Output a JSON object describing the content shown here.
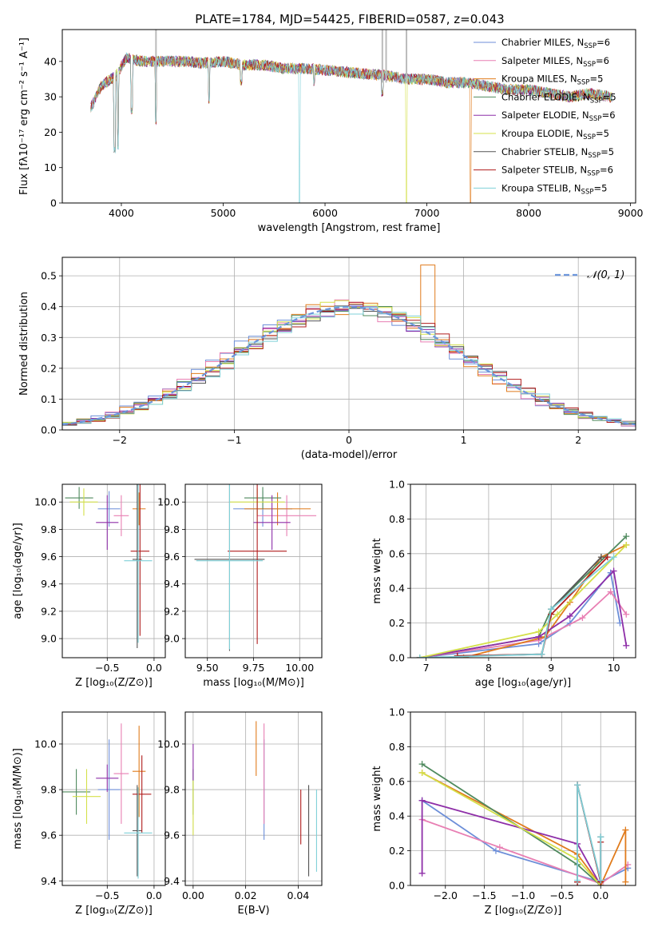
{
  "figure_title": "PLATE=1784, MJD=54425, FIBERID=0587, z=0.043",
  "legend": [
    {
      "name": "Chabrier MILES, N",
      "sub": "SSP",
      "tail": "=6",
      "color": "#6c8ed8"
    },
    {
      "name": "Salpeter MILES, N",
      "sub": "SSP",
      "tail": "=6",
      "color": "#e87fb3"
    },
    {
      "name": "Kroupa MILES, N",
      "sub": "SSP",
      "tail": "=5",
      "color": "#e07b1c"
    },
    {
      "name": "Chabrier ELODIE, N",
      "sub": "SSP",
      "tail": "=5",
      "color": "#4f8a5e"
    },
    {
      "name": "Salpeter ELODIE, N",
      "sub": "SSP",
      "tail": "=6",
      "color": "#8e2fa8"
    },
    {
      "name": "Kroupa ELODIE, N",
      "sub": "SSP",
      "tail": "=5",
      "color": "#d4e04a"
    },
    {
      "name": "Chabrier STELIB, N",
      "sub": "SSP",
      "tail": "=5",
      "color": "#555555"
    },
    {
      "name": "Salpeter STELIB, N",
      "sub": "SSP",
      "tail": "=6",
      "color": "#b01c1c"
    },
    {
      "name": "Kroupa STELIB, N",
      "sub": "SSP",
      "tail": "=5",
      "color": "#7fd0d8"
    }
  ],
  "chart_data": [
    {
      "id": "spectrum",
      "type": "line",
      "xlabel": "wavelength [Angstrom, rest frame]",
      "ylabel": "Flux [fλ10⁻¹⁷ erg cm⁻² s⁻¹ A⁻¹]",
      "xlim": [
        3420,
        9050
      ],
      "ylim": [
        0,
        49
      ],
      "xticks": [
        4000,
        5000,
        6000,
        7000,
        8000,
        9000
      ],
      "yticks": [
        0,
        10,
        20,
        30,
        40
      ],
      "grid": false,
      "legend_position": "right",
      "continuum": [
        [
          3700,
          27
        ],
        [
          3800,
          33
        ],
        [
          3950,
          36
        ],
        [
          4050,
          41
        ],
        [
          4200,
          40
        ],
        [
          4400,
          40
        ],
        [
          4600,
          40
        ],
        [
          4800,
          39.5
        ],
        [
          5000,
          40
        ],
        [
          5200,
          39
        ],
        [
          5400,
          39
        ],
        [
          5600,
          38
        ],
        [
          5800,
          38
        ],
        [
          6000,
          37.5
        ],
        [
          6200,
          37
        ],
        [
          6400,
          36.5
        ],
        [
          6600,
          36
        ],
        [
          6800,
          35
        ],
        [
          7000,
          35
        ],
        [
          7200,
          34
        ],
        [
          7400,
          34
        ],
        [
          7600,
          33
        ],
        [
          7800,
          32
        ],
        [
          8000,
          32
        ],
        [
          8200,
          31
        ],
        [
          8400,
          30
        ],
        [
          8600,
          31
        ],
        [
          8800,
          30
        ]
      ],
      "absorption_lines": [
        [
          3934,
          14
        ],
        [
          3968,
          15
        ],
        [
          4102,
          25
        ],
        [
          4340,
          22
        ],
        [
          4861,
          28
        ],
        [
          5175,
          33
        ],
        [
          5750,
          0
        ],
        [
          5893,
          33
        ],
        [
          6563,
          30
        ],
        [
          6800,
          0
        ],
        [
          7430,
          0
        ]
      ]
    },
    {
      "id": "residuals",
      "type": "bar",
      "xlabel": "(data-model)/error",
      "ylabel": "Normed distribution",
      "xlim": [
        -2.5,
        2.5
      ],
      "ylim": [
        0,
        0.56
      ],
      "xticks": [
        -2,
        -1,
        0,
        1,
        2
      ],
      "yticks": [
        0.0,
        0.1,
        0.2,
        0.3,
        0.4,
        0.5
      ],
      "grid": true,
      "bin_width": 0.125,
      "reference_curve": {
        "name": "𝒩(0, 1)",
        "mean": 0,
        "sigma": 1,
        "style": "dashed",
        "color": "#6c96dc"
      },
      "legend_position": "top-right"
    },
    {
      "id": "age_vs_Z",
      "type": "scatter",
      "xlabel": "Z [log₁₀(Z/Z⊙)]",
      "ylabel": "age  [log₁₀(age/yr)]",
      "xlim": [
        -0.98,
        0.12
      ],
      "ylim": [
        8.86,
        10.13
      ],
      "xticks": [
        -0.5,
        0.0
      ],
      "yticks": [
        9.0,
        9.2,
        9.4,
        9.6,
        9.8,
        10.0
      ],
      "grid": true,
      "points": [
        {
          "x": -0.48,
          "y": 9.95,
          "xerr": 0.12,
          "yerr": 0.13,
          "series": 0
        },
        {
          "x": -0.35,
          "y": 9.9,
          "xerr": 0.08,
          "yerr": 0.15,
          "series": 1
        },
        {
          "x": -0.16,
          "y": 9.95,
          "xerr": 0.07,
          "yerr": 0.12,
          "series": 2
        },
        {
          "x": -0.8,
          "y": 10.03,
          "xerr": 0.15,
          "yerr": 0.08,
          "series": 3
        },
        {
          "x": -0.5,
          "y": 9.85,
          "xerr": 0.12,
          "yerr": 0.2,
          "series": 4
        },
        {
          "x": -0.75,
          "y": 10.0,
          "xerr": 0.15,
          "yerr": 0.1,
          "series": 5
        },
        {
          "x": -0.18,
          "y": 9.58,
          "xerr": 0.05,
          "yerr": 0.65,
          "series": 6
        },
        {
          "x": -0.15,
          "y": 9.64,
          "xerr": 0.1,
          "yerr": 0.62,
          "series": 7
        },
        {
          "x": -0.17,
          "y": 9.57,
          "xerr": 0.15,
          "yerr": 0.6,
          "series": 8
        }
      ]
    },
    {
      "id": "age_vs_mass",
      "type": "scatter",
      "xlabel": "mass [log₁₀(M/M⊙)]",
      "ylabel": "",
      "xlim": [
        9.38,
        10.12
      ],
      "ylim": [
        8.86,
        10.13
      ],
      "xticks": [
        9.5,
        9.75,
        10.0
      ],
      "yticks": [
        9.0,
        9.2,
        9.4,
        9.6,
        9.8,
        10.0
      ],
      "grid": true,
      "points": [
        {
          "x": 9.8,
          "y": 9.95,
          "xerr": 0.16,
          "yerr": 0.13,
          "series": 0
        },
        {
          "x": 9.93,
          "y": 9.9,
          "xerr": 0.16,
          "yerr": 0.15,
          "series": 1
        },
        {
          "x": 9.88,
          "y": 9.95,
          "xerr": 0.18,
          "yerr": 0.12,
          "series": 2
        },
        {
          "x": 9.8,
          "y": 10.03,
          "xerr": 0.1,
          "yerr": 0.08,
          "series": 3
        },
        {
          "x": 9.85,
          "y": 9.85,
          "xerr": 0.1,
          "yerr": 0.2,
          "series": 4
        },
        {
          "x": 9.77,
          "y": 10.0,
          "xerr": 0.15,
          "yerr": 0.1,
          "series": 5
        },
        {
          "x": 9.62,
          "y": 9.58,
          "xerr": 0.19,
          "yerr": 0.67,
          "series": 6
        },
        {
          "x": 9.77,
          "y": 9.64,
          "xerr": 0.16,
          "yerr": 0.68,
          "series": 7
        },
        {
          "x": 9.62,
          "y": 9.57,
          "xerr": 0.18,
          "yerr": 0.65,
          "series": 8
        }
      ]
    },
    {
      "id": "mass_weight_vs_age",
      "type": "line",
      "xlabel": "age  [log₁₀(age/yr)]",
      "ylabel": "mass weight",
      "xlim": [
        6.75,
        10.35
      ],
      "ylim": [
        0,
        1.0
      ],
      "xticks": [
        7,
        8,
        9,
        10
      ],
      "yticks": [
        0.0,
        0.2,
        0.4,
        0.6,
        0.8,
        1.0
      ],
      "grid": true,
      "series": [
        {
          "index": 0,
          "x": [
            6.9,
            8.8,
            9.3,
            9.95,
            10.1
          ],
          "y": [
            0.0,
            0.08,
            0.2,
            0.49,
            0.2
          ]
        },
        {
          "index": 1,
          "x": [
            6.9,
            8.8,
            9.5,
            9.95,
            10.2
          ],
          "y": [
            0.0,
            0.1,
            0.23,
            0.38,
            0.25
          ]
        },
        {
          "index": 2,
          "x": [
            7.6,
            8.9,
            9.3,
            9.8,
            10.2
          ],
          "y": [
            0.0,
            0.12,
            0.32,
            0.58,
            0.65
          ]
        },
        {
          "index": 3,
          "x": [
            6.9,
            8.8,
            9.0,
            10.2
          ],
          "y": [
            0.0,
            0.12,
            0.28,
            0.7
          ]
        },
        {
          "index": 4,
          "x": [
            6.9,
            8.8,
            9.3,
            10.0,
            10.2
          ],
          "y": [
            0.0,
            0.12,
            0.24,
            0.5,
            0.07
          ]
        },
        {
          "index": 5,
          "x": [
            6.9,
            8.8,
            9.1,
            10.2
          ],
          "y": [
            0.0,
            0.15,
            0.25,
            0.65
          ]
        },
        {
          "index": 6,
          "x": [
            7.5,
            8.85,
            9.0,
            9.8
          ],
          "y": [
            0.01,
            0.02,
            0.28,
            0.58
          ]
        },
        {
          "index": 7,
          "x": [
            7.5,
            8.85,
            9.0,
            9.9
          ],
          "y": [
            0.01,
            0.02,
            0.25,
            0.58
          ]
        },
        {
          "index": 8,
          "x": [
            6.9,
            8.85,
            9.0,
            10.0
          ],
          "y": [
            0.0,
            0.02,
            0.28,
            0.58
          ]
        }
      ]
    },
    {
      "id": "mass_vs_Z",
      "type": "scatter",
      "xlabel": "Z [log₁₀(Z/Z⊙)]",
      "ylabel": "mass [log₁₀(M/M⊙)]",
      "xlim": [
        -0.98,
        0.12
      ],
      "ylim": [
        9.38,
        10.14
      ],
      "xticks": [
        -0.5,
        0.0
      ],
      "yticks": [
        9.4,
        9.6,
        9.8,
        10.0
      ],
      "grid": true,
      "points": [
        {
          "x": -0.48,
          "y": 9.8,
          "xerr": 0.12,
          "yerr": 0.22,
          "series": 0
        },
        {
          "x": -0.35,
          "y": 9.87,
          "xerr": 0.08,
          "yerr": 0.22,
          "series": 1
        },
        {
          "x": -0.16,
          "y": 9.88,
          "xerr": 0.07,
          "yerr": 0.2,
          "series": 2
        },
        {
          "x": -0.83,
          "y": 9.79,
          "xerr": 0.15,
          "yerr": 0.1,
          "series": 3
        },
        {
          "x": -0.5,
          "y": 9.85,
          "xerr": 0.12,
          "yerr": 0.06,
          "series": 4
        },
        {
          "x": -0.72,
          "y": 9.77,
          "xerr": 0.15,
          "yerr": 0.12,
          "series": 5
        },
        {
          "x": -0.18,
          "y": 9.62,
          "xerr": 0.05,
          "yerr": 0.2,
          "series": 6
        },
        {
          "x": -0.13,
          "y": 9.78,
          "xerr": 0.1,
          "yerr": 0.17,
          "series": 7
        },
        {
          "x": -0.17,
          "y": 9.61,
          "xerr": 0.15,
          "yerr": 0.2,
          "series": 8
        }
      ]
    },
    {
      "id": "mass_vs_ebv",
      "type": "scatter",
      "xlabel": "E(B-V)",
      "ylabel": "",
      "xlim": [
        -0.003,
        0.049
      ],
      "ylim": [
        9.38,
        10.14
      ],
      "xticks": [
        0.0,
        0.02,
        0.04
      ],
      "yticks": [
        9.4,
        9.6,
        9.8,
        10.0
      ],
      "grid": true,
      "points": [
        {
          "x": 0.027,
          "y": 9.8,
          "yerr": 0.22,
          "series": 0
        },
        {
          "x": 0.027,
          "y": 9.87,
          "yerr": 0.22,
          "series": 1
        },
        {
          "x": 0.024,
          "y": 9.98,
          "yerr": 0.12,
          "series": 2
        },
        {
          "x": 0.0,
          "y": 9.79,
          "yerr": 0.1,
          "series": 3
        },
        {
          "x": 0.0,
          "y": 9.92,
          "yerr": 0.08,
          "series": 4
        },
        {
          "x": 0.0,
          "y": 9.72,
          "yerr": 0.12,
          "series": 5
        },
        {
          "x": 0.044,
          "y": 9.62,
          "yerr": 0.2,
          "series": 6
        },
        {
          "x": 0.041,
          "y": 9.68,
          "yerr": 0.12,
          "series": 7
        },
        {
          "x": 0.047,
          "y": 9.62,
          "yerr": 0.18,
          "series": 8
        }
      ]
    },
    {
      "id": "mass_weight_vs_Z",
      "type": "line",
      "xlabel": "Z [log₁₀(Z/Z⊙)]",
      "ylabel": "mass weight",
      "xlim": [
        -2.45,
        0.45
      ],
      "ylim": [
        0,
        1.0
      ],
      "xticks": [
        -2.0,
        -1.5,
        -1.0,
        -0.5,
        0.0
      ],
      "yticks": [
        0.0,
        0.2,
        0.4,
        0.6,
        0.8,
        1.0
      ],
      "grid": true,
      "series": [
        {
          "index": 0,
          "x": [
            -2.3,
            -1.35,
            0.0,
            0.35
          ],
          "y": [
            0.49,
            0.2,
            0.02,
            0.1
          ]
        },
        {
          "index": 1,
          "x": [
            -2.3,
            -1.3,
            0.0,
            0.35
          ],
          "y": [
            0.38,
            0.22,
            0.01,
            0.12
          ]
        },
        {
          "index": 2,
          "x": [
            -2.3,
            -0.3,
            0.0,
            0.32,
            0.32
          ],
          "y": [
            0.65,
            0.18,
            0.0,
            0.32,
            0.02
          ]
        },
        {
          "index": 3,
          "x": [
            -2.3,
            -0.3,
            0.0
          ],
          "y": [
            0.7,
            0.12,
            0.0
          ]
        },
        {
          "index": 4,
          "x": [
            -2.3,
            -2.3,
            -0.3,
            0.0
          ],
          "y": [
            0.07,
            0.49,
            0.24,
            0.0
          ]
        },
        {
          "index": 5,
          "x": [
            -2.3,
            -0.3,
            0.0
          ],
          "y": [
            0.65,
            0.15,
            0.0
          ]
        },
        {
          "index": 6,
          "x": [
            -0.3,
            -0.3,
            0.0,
            0.0
          ],
          "y": [
            0.02,
            0.58,
            0.02,
            0.28
          ]
        },
        {
          "index": 7,
          "x": [
            -0.3,
            -0.3,
            0.0,
            0.0
          ],
          "y": [
            0.02,
            0.58,
            0.02,
            0.25
          ]
        },
        {
          "index": 8,
          "x": [
            -0.3,
            -0.3,
            0.0,
            0.0
          ],
          "y": [
            0.03,
            0.58,
            0.03,
            0.28
          ]
        }
      ]
    }
  ]
}
